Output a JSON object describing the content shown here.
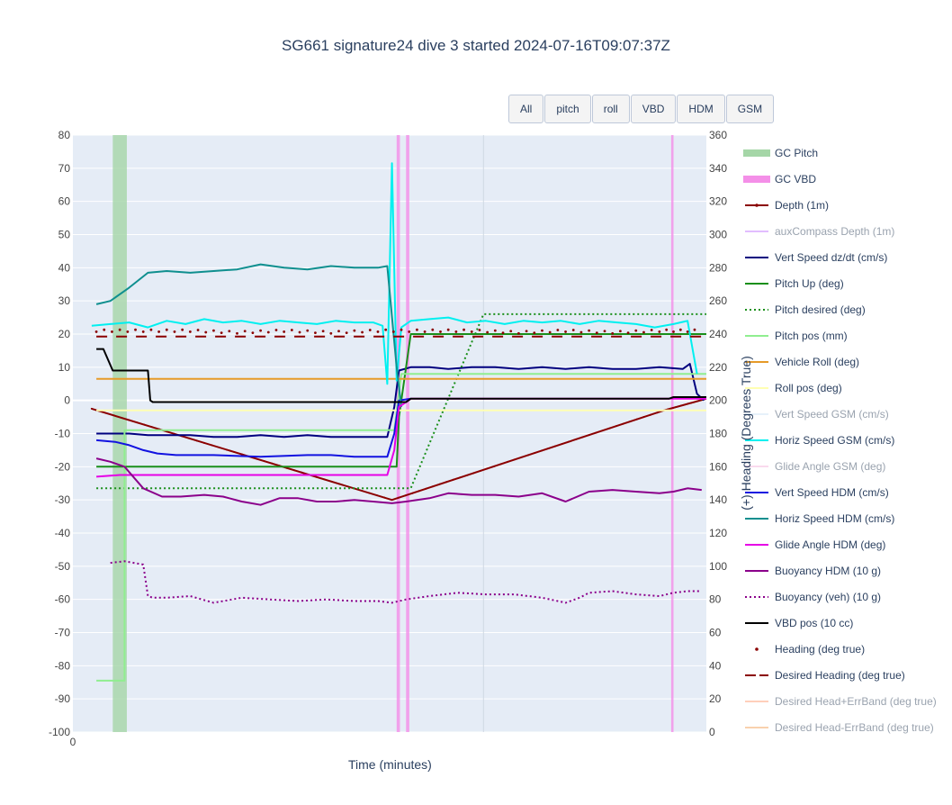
{
  "title": "SG661 signature24 dive 3 started 2024-07-16T09:07:37Z",
  "buttons": [
    "All",
    "pitch",
    "roll",
    "VBD",
    "HDM",
    "GSM"
  ],
  "chart_data": {
    "type": "line",
    "title": "SG661 signature24 dive 3 started 2024-07-16T09:07:37Z",
    "xlabel": "Time (minutes)",
    "ylabel": "",
    "y2label": "(+) Heading (Degrees True)",
    "x_ticks": [
      "0"
    ],
    "xlim": [
      0,
      13.5
    ],
    "ylim": [
      -100,
      80
    ],
    "y_ticks": [
      80,
      70,
      60,
      50,
      40,
      30,
      20,
      10,
      0,
      -10,
      -20,
      -30,
      -40,
      -50,
      -60,
      -70,
      -80,
      -90,
      -100
    ],
    "y2lim": [
      0,
      360
    ],
    "y2_ticks": [
      360,
      340,
      320,
      300,
      280,
      260,
      240,
      220,
      200,
      180,
      160,
      140,
      120,
      100,
      80,
      60,
      40,
      20,
      0
    ],
    "grid": true,
    "legend_position": "right",
    "bands": [
      {
        "name": "GC Pitch",
        "color": "#a5d6a7",
        "ranges": [
          [
            0.85,
            1.15
          ]
        ]
      },
      {
        "name": "GC VBD",
        "color": "#f48fe8",
        "ranges": [
          [
            6.9,
            6.97
          ],
          [
            7.1,
            7.17
          ],
          [
            12.75,
            12.8
          ]
        ]
      }
    ],
    "series": [
      {
        "name": "Depth (1m)",
        "color": "#8b0000",
        "dash": "solid",
        "marker": true,
        "axis": "y",
        "x": [
          0.4,
          6.8,
          12.6,
          13.5
        ],
        "y": [
          -2.5,
          -30,
          -3,
          0.5
        ]
      },
      {
        "name": "auxCompass Depth (1m)",
        "color": "#c77dff",
        "dash": "solid",
        "dim": true,
        "axis": "y",
        "x": [],
        "y": []
      },
      {
        "name": "Vert Speed dz/dt (cm/s)",
        "color": "#00007f",
        "dash": "solid",
        "axis": "y",
        "x": [
          0.5,
          1.2,
          1.6,
          2.0,
          2.5,
          3.0,
          3.5,
          4.0,
          4.5,
          5.0,
          5.5,
          6.0,
          6.5,
          6.7,
          6.85,
          6.95,
          7.2,
          7.6,
          8.0,
          8.5,
          9.0,
          9.5,
          10.0,
          10.5,
          11.0,
          11.5,
          12.0,
          12.5,
          13.0,
          13.15,
          13.3,
          13.45
        ],
        "y": [
          -10,
          -10,
          -10.5,
          -10.5,
          -10.5,
          -11,
          -11,
          -10.5,
          -11,
          -10.5,
          -11,
          -11,
          -11,
          -11,
          -2,
          9,
          10,
          10,
          9.5,
          10,
          10,
          9.5,
          10,
          9.5,
          10,
          9.5,
          9.5,
          10,
          9.5,
          11,
          2,
          0
        ]
      },
      {
        "name": "Pitch Up (deg)",
        "color": "#1a8f1a",
        "dash": "solid",
        "axis": "y",
        "x": [
          0.5,
          6.9,
          6.95,
          7.2,
          13.5
        ],
        "y": [
          -20,
          -20,
          -5,
          20,
          20
        ]
      },
      {
        "name": "Pitch desired (deg)",
        "color": "#1a8f1a",
        "dash": "dot",
        "axis": "y",
        "x": [
          0.5,
          7.2,
          8.75,
          13.5
        ],
        "y": [
          -26.5,
          -26.5,
          26,
          26
        ]
      },
      {
        "name": "Pitch pos (mm)",
        "color": "#90ee90",
        "dash": "solid",
        "axis": "y",
        "x": [
          0.5,
          1.1,
          1.1,
          6.85,
          7.0,
          13.5
        ],
        "y": [
          -84.5,
          -84.5,
          -9,
          -9,
          8,
          8
        ]
      },
      {
        "name": "Vehicle Roll (deg)",
        "color": "#e69a28",
        "dash": "solid",
        "axis": "y",
        "x": [
          0.5,
          2.0,
          4.0,
          6.0,
          8.0,
          10.0,
          12.0,
          13.5
        ],
        "y": [
          6.5,
          6.5,
          6.5,
          6.5,
          6.5,
          6.5,
          6.5,
          6.5
        ]
      },
      {
        "name": "Roll pos (deg)",
        "color": "#ffffb3",
        "dash": "solid",
        "axis": "y",
        "x": [
          0.5,
          13.5
        ],
        "y": [
          -3,
          -3
        ]
      },
      {
        "name": "Vert Speed GSM (cm/s)",
        "color": "#cfe5f7",
        "dash": "solid",
        "dim": true,
        "axis": "y",
        "x": [],
        "y": []
      },
      {
        "name": "Horiz Speed GSM (cm/s)",
        "color": "#00f0f0",
        "dash": "solid",
        "axis": "y",
        "x": [
          0.4,
          0.8,
          1.2,
          1.6,
          2.0,
          2.4,
          2.8,
          3.2,
          3.6,
          4.0,
          4.4,
          4.8,
          5.2,
          5.6,
          6.0,
          6.4,
          6.6,
          6.7,
          6.8,
          6.9,
          7.0,
          7.2,
          7.6,
          8.0,
          8.4,
          8.8,
          9.2,
          9.6,
          10.0,
          10.4,
          10.8,
          11.2,
          11.6,
          12.0,
          12.4,
          12.8,
          13.1,
          13.3
        ],
        "y": [
          22.5,
          23,
          23.5,
          22,
          24,
          23,
          24.5,
          23.5,
          24,
          23,
          24,
          23.5,
          23,
          24,
          23.5,
          23.5,
          22.5,
          5,
          71.5,
          6,
          22,
          24,
          24.5,
          25,
          23.5,
          24,
          23,
          24,
          23.5,
          24,
          23,
          24,
          23.5,
          23,
          22,
          23,
          24,
          8
        ]
      },
      {
        "name": "Glide Angle GSM (deg)",
        "color": "#f7b6dc",
        "dash": "solid",
        "dim": true,
        "axis": "y",
        "x": [],
        "y": []
      },
      {
        "name": "Vert Speed HDM (cm/s)",
        "color": "#1212e0",
        "dash": "solid",
        "axis": "y",
        "x": [
          0.5,
          0.9,
          1.2,
          1.5,
          1.8,
          2.2,
          3.0,
          4.0,
          5.0,
          5.5,
          6.0,
          6.5,
          6.7,
          6.85,
          6.95,
          7.2
        ],
        "y": [
          -12,
          -12.5,
          -13.5,
          -15,
          -16,
          -16.5,
          -16.5,
          -17,
          -16.5,
          -16.5,
          -17,
          -17,
          -17,
          -10,
          0,
          0.5
        ]
      },
      {
        "name": "Horiz Speed HDM (cm/s)",
        "color": "#0f8f8f",
        "dash": "solid",
        "axis": "y",
        "x": [
          0.5,
          0.8,
          1.2,
          1.6,
          2.0,
          2.5,
          3.0,
          3.5,
          4.0,
          4.5,
          5.0,
          5.5,
          6.0,
          6.5,
          6.7,
          6.9,
          7.0
        ],
        "y": [
          29,
          30,
          34,
          38.5,
          39,
          38.5,
          39,
          39.5,
          41,
          40,
          39.5,
          40.5,
          40,
          40,
          40.5,
          10,
          -2
        ]
      },
      {
        "name": "Glide Angle HDM (deg)",
        "color": "#e600e6",
        "dash": "solid",
        "axis": "y",
        "x": [
          0.5,
          1.0,
          2.0,
          3.0,
          4.0,
          5.0,
          6.0,
          6.5,
          6.7,
          6.85,
          6.95,
          7.2,
          13.5
        ],
        "y": [
          -23,
          -22.5,
          -22.5,
          -22.5,
          -22.5,
          -22.5,
          -22.5,
          -22.5,
          -22.5,
          -15,
          -2,
          0.5,
          0.5
        ]
      },
      {
        "name": "Buoyancy HDM (10 g)",
        "color": "#8b008b",
        "dash": "solid",
        "axis": "y",
        "x": [
          0.5,
          0.8,
          1.1,
          1.5,
          1.9,
          2.3,
          2.8,
          3.2,
          3.6,
          4.0,
          4.4,
          4.8,
          5.2,
          5.6,
          6.0,
          6.4,
          6.8,
          7.1,
          7.6,
          8.0,
          8.5,
          9.0,
          9.5,
          10.0,
          10.5,
          11.0,
          11.5,
          12.0,
          12.5,
          12.8,
          13.1,
          13.4
        ],
        "y": [
          -17.5,
          -18.5,
          -20,
          -26.5,
          -29,
          -29,
          -28.5,
          -29,
          -30.5,
          -31.5,
          -29.5,
          -29.5,
          -30.5,
          -30.5,
          -30,
          -30.5,
          -31,
          -30.5,
          -29.5,
          -28,
          -28.5,
          -28.5,
          -29,
          -28,
          -30.5,
          -27.5,
          -27,
          -27.5,
          -28,
          -27.5,
          -26.5,
          -27
        ]
      },
      {
        "name": "Buoyancy (veh) (10 g)",
        "color": "#8b008b",
        "dash": "dot",
        "axis": "y",
        "x": [
          0.8,
          1.1,
          1.5,
          1.6,
          1.7,
          2.0,
          2.5,
          3.0,
          3.6,
          4.2,
          4.8,
          5.4,
          6.0,
          6.5,
          6.8,
          7.1,
          7.6,
          8.2,
          8.8,
          9.4,
          10.0,
          10.5,
          10.8,
          11.0,
          11.5,
          12.0,
          12.5,
          12.8,
          13.1,
          13.4
        ],
        "y": [
          -49,
          -48.5,
          -49.5,
          -59,
          -59.5,
          -59.5,
          -59,
          -61,
          -59.5,
          -60,
          -60.5,
          -60,
          -60.5,
          -60.5,
          -61,
          -60,
          -59,
          -58,
          -58.5,
          -58.5,
          -59.5,
          -61,
          -59.5,
          -58,
          -57.5,
          -58.5,
          -59,
          -58,
          -57.5,
          -57.5
        ]
      },
      {
        "name": "VBD pos (10 cc)",
        "color": "#000000",
        "dash": "solid",
        "axis": "y",
        "x": [
          0.5,
          0.65,
          0.85,
          1.1,
          1.6,
          1.65,
          1.7,
          6.8,
          6.9,
          7.0,
          7.1,
          7.2,
          12.7,
          12.8,
          13.5
        ],
        "y": [
          15.5,
          15.5,
          9,
          9,
          9,
          0,
          -0.5,
          -0.5,
          -0.5,
          -0.5,
          -0.5,
          0.5,
          0.5,
          1,
          1
        ]
      },
      {
        "name": "Heading (deg true)",
        "color": "#8b0000",
        "dash": "markers",
        "axis": "y2",
        "x": [
          0.5,
          1.5,
          2.5,
          3.5,
          4.5,
          5.5,
          6.5,
          7.5,
          8.5,
          9.5,
          10.5,
          11.5,
          12.5,
          13.4
        ],
        "y": [
          242,
          242,
          242,
          241,
          242,
          241,
          242,
          242,
          242,
          241,
          242,
          241,
          242,
          242
        ]
      },
      {
        "name": "Desired Heading (deg true)",
        "color": "#8b0000",
        "dash": "dash",
        "axis": "y2",
        "x": [
          0.5,
          13.5
        ],
        "y": [
          238.5,
          238.5
        ]
      },
      {
        "name": "Desired Head+ErrBand (deg true)",
        "color": "#ffa07a",
        "dash": "solid",
        "dim": true,
        "axis": "y2",
        "x": [],
        "y": []
      },
      {
        "name": "Desired Head-ErrBand (deg true)",
        "color": "#f4a460",
        "dash": "solid",
        "dim": true,
        "axis": "y2",
        "x": [],
        "y": []
      }
    ]
  }
}
